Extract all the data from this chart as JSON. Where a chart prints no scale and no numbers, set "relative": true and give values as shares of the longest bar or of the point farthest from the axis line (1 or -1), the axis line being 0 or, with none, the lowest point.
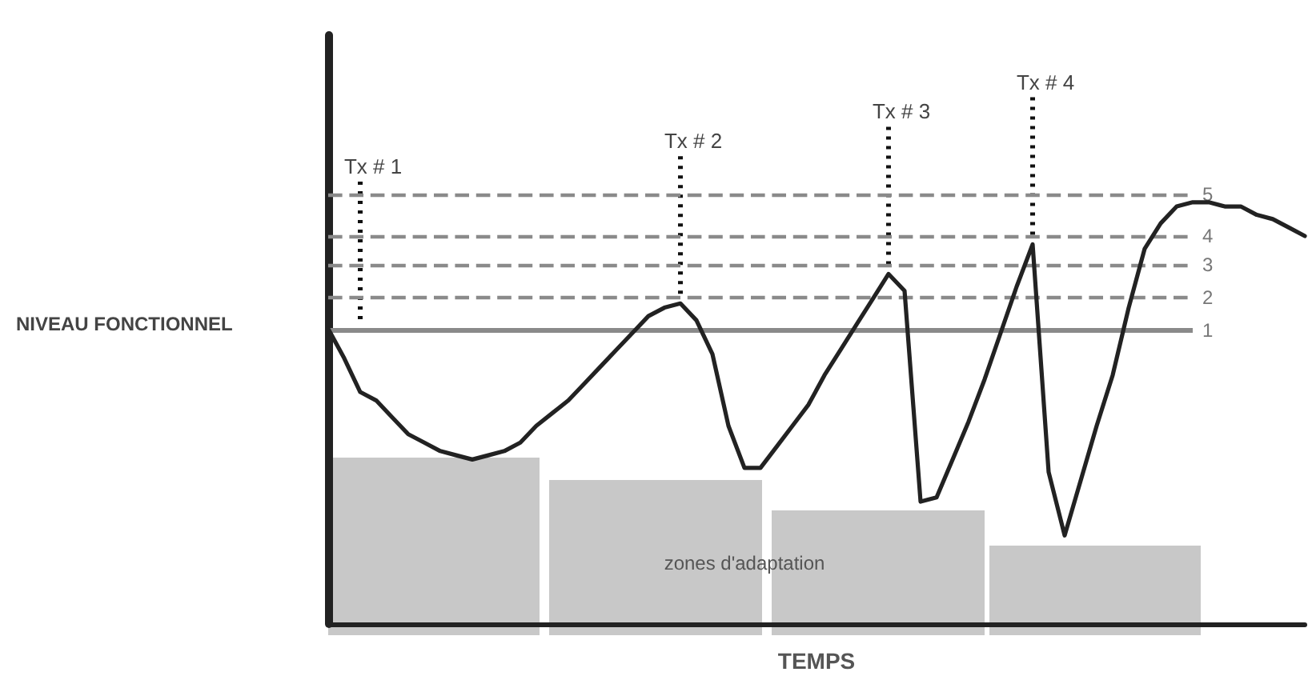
{
  "chart_data": {
    "type": "line",
    "xlabel": "TEMPS",
    "ylabel": "NIVEAU FONCTIONNEL",
    "relative": true,
    "tick_labels": false,
    "grid": false,
    "marker": "none",
    "line_style": "solid",
    "categories": [
      null,
      null,
      null,
      null,
      null,
      null,
      null,
      null,
      null,
      null,
      null,
      null,
      null,
      null,
      null,
      null,
      null,
      null,
      null,
      null,
      null,
      null,
      null,
      null,
      null,
      null,
      null,
      null,
      null,
      null,
      null,
      null,
      null,
      null,
      null,
      null,
      null,
      null,
      null,
      null,
      null,
      null,
      null,
      null,
      null,
      null,
      null,
      null,
      null,
      null,
      null,
      null,
      null,
      null,
      null,
      null,
      null,
      null,
      null,
      null,
      null,
      null
    ],
    "series": [
      {
        "color": "#222222",
        "values": [
          0.7,
          0.63,
          0.55,
          0.53,
          0.49,
          0.45,
          0.43,
          0.41,
          0.4,
          0.39,
          0.4,
          0.41,
          0.43,
          0.47,
          0.5,
          0.53,
          0.57,
          0.61,
          0.65,
          0.69,
          0.73,
          0.75,
          0.76,
          0.72,
          0.64,
          0.47,
          0.37,
          0.37,
          0.42,
          0.47,
          0.52,
          0.59,
          0.65,
          0.71,
          0.77,
          0.83,
          0.79,
          0.29,
          0.3,
          0.39,
          0.48,
          0.58,
          0.69,
          0.8,
          0.9,
          0.36,
          0.21,
          0.34,
          0.47,
          0.59,
          0.75,
          0.89,
          0.95,
          0.99,
          1.0,
          1.0,
          0.99,
          0.99,
          0.97,
          0.96,
          0.94,
          0.92
        ]
      }
    ],
    "ref_lines": [
      {
        "axis": "y",
        "value": 0.696,
        "line_style": "solid",
        "color": "#8a8a8a"
      },
      {
        "axis": "y",
        "value": 0.774,
        "line_style": "dashed",
        "color": "#8a8a8a"
      },
      {
        "axis": "y",
        "value": 0.852,
        "line_style": "dashed",
        "color": "#8a8a8a"
      },
      {
        "axis": "y",
        "value": 0.919,
        "line_style": "dashed",
        "color": "#8a8a8a"
      },
      {
        "axis": "y",
        "value": 1.019,
        "line_style": "dashed",
        "color": "#8a8a8a"
      }
    ],
    "annotations": [
      "Tx # 1",
      "Tx # 2",
      "Tx # 3",
      "Tx # 4",
      "zones d'adaptation",
      "1",
      "2",
      "3",
      "4",
      "5"
    ]
  }
}
